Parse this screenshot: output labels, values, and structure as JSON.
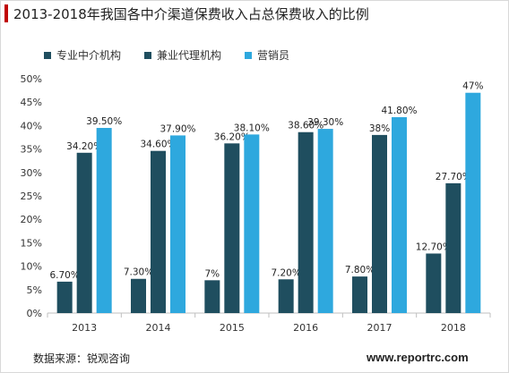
{
  "chart_data": {
    "type": "bar",
    "title": "2013-2018年我国各中介渠道保费收入占总保费收入的比例",
    "categories": [
      "2013",
      "2014",
      "2015",
      "2016",
      "2017",
      "2018"
    ],
    "series": [
      {
        "name": "专业中介机构",
        "values": [
          6.7,
          7.3,
          7,
          7.2,
          7.8,
          12.7
        ],
        "labels": [
          "6.70%",
          "7.30%",
          "7%",
          "7.20%",
          "7.80%",
          "12.70%"
        ],
        "color": "#1f4e5f"
      },
      {
        "name": "兼业代理机构",
        "values": [
          34.2,
          34.6,
          36.2,
          38.6,
          38,
          27.7
        ],
        "labels": [
          "34.20%",
          "34.60%",
          "36.20%",
          "38.60%",
          "38%",
          "27.70%"
        ],
        "color": "#1f4e5f"
      },
      {
        "name": "营销员",
        "values": [
          39.5,
          37.9,
          38.1,
          39.3,
          41.8,
          47
        ],
        "labels": [
          "39.50%",
          "37.90%",
          "38.10%",
          "39.30%",
          "41.80%",
          "47%"
        ],
        "color": "#2ea8de"
      }
    ],
    "yticks": [
      "0%",
      "5%",
      "10%",
      "15%",
      "20%",
      "25%",
      "30%",
      "35%",
      "40%",
      "45%",
      "50%"
    ],
    "ylim": [
      0,
      50
    ],
    "grid": false,
    "legend_position": "top-left"
  },
  "legend_swatch_colors": [
    "#1f4e5f",
    "#1f4e5f",
    "#2ea8de"
  ],
  "footer": {
    "source": "数据来源：锐观咨询",
    "url": "www.reportrc.com"
  }
}
